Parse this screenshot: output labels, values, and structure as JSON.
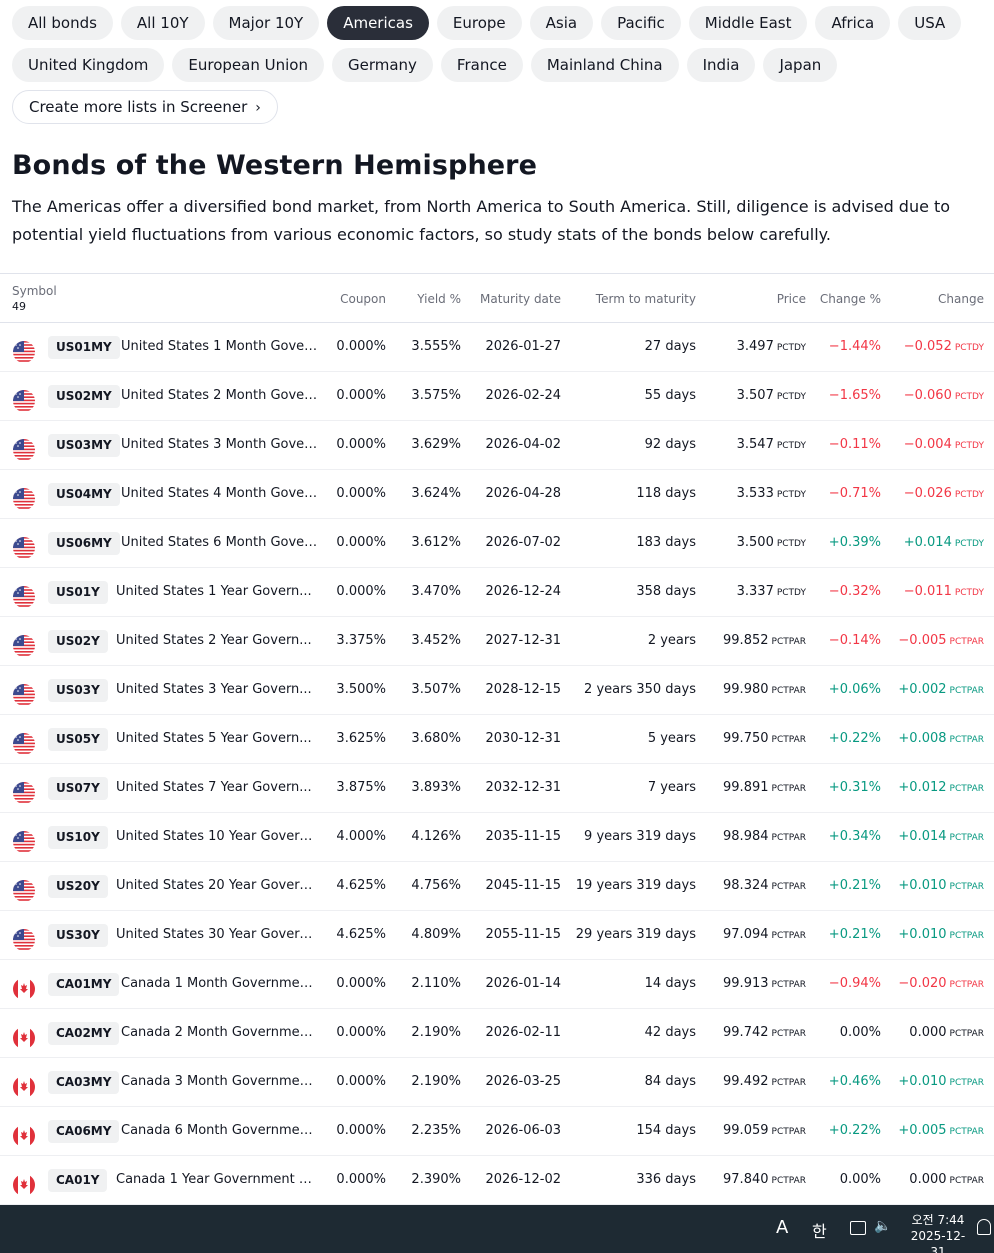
{
  "filters": {
    "row1": [
      "All bonds",
      "All 10Y",
      "Major 10Y",
      "Americas",
      "Europe",
      "Asia",
      "Pacific",
      "Middle East",
      "Africa",
      "USA"
    ],
    "row2": [
      "United Kingdom",
      "European Union",
      "Germany",
      "France",
      "Mainland China",
      "India",
      "Japan"
    ],
    "active": "Americas",
    "screener_link": "Create more lists in Screener"
  },
  "page": {
    "title": "Bonds of the Western Hemisphere",
    "description": "The Americas offer a diversified bond market, from North America to South America. Still, diligence is advised due to potential yield fluctuations from various economic factors, so study stats of the bonds below carefully."
  },
  "table": {
    "headers": {
      "symbol": "Symbol",
      "count": "49",
      "coupon": "Coupon",
      "yield": "Yield %",
      "maturity": "Maturity date",
      "term": "Term to maturity",
      "price": "Price",
      "change_pct": "Change %",
      "change": "Change"
    },
    "rows": [
      {
        "flag": "us",
        "ticker": "US01MY",
        "name": "United States 1 Month Gover...",
        "coupon": "0.000%",
        "yield": "3.555%",
        "maturity": "2026-01-27",
        "term": "27 days",
        "price": "3.497",
        "price_unit": "PCTDY",
        "change_pct": "−1.44%",
        "change": "−0.052",
        "change_unit": "PCTDY",
        "dir": "neg"
      },
      {
        "flag": "us",
        "ticker": "US02MY",
        "name": "United States 2 Month Gover...",
        "coupon": "0.000%",
        "yield": "3.575%",
        "maturity": "2026-02-24",
        "term": "55 days",
        "price": "3.507",
        "price_unit": "PCTDY",
        "change_pct": "−1.65%",
        "change": "−0.060",
        "change_unit": "PCTDY",
        "dir": "neg"
      },
      {
        "flag": "us",
        "ticker": "US03MY",
        "name": "United States 3 Month Gover...",
        "coupon": "0.000%",
        "yield": "3.629%",
        "maturity": "2026-04-02",
        "term": "92 days",
        "price": "3.547",
        "price_unit": "PCTDY",
        "change_pct": "−0.11%",
        "change": "−0.004",
        "change_unit": "PCTDY",
        "dir": "neg"
      },
      {
        "flag": "us",
        "ticker": "US04MY",
        "name": "United States 4 Month Gover...",
        "coupon": "0.000%",
        "yield": "3.624%",
        "maturity": "2026-04-28",
        "term": "118 days",
        "price": "3.533",
        "price_unit": "PCTDY",
        "change_pct": "−0.71%",
        "change": "−0.026",
        "change_unit": "PCTDY",
        "dir": "neg"
      },
      {
        "flag": "us",
        "ticker": "US06MY",
        "name": "United States 6 Month Gover...",
        "coupon": "0.000%",
        "yield": "3.612%",
        "maturity": "2026-07-02",
        "term": "183 days",
        "price": "3.500",
        "price_unit": "PCTDY",
        "change_pct": "+0.39%",
        "change": "+0.014",
        "change_unit": "PCTDY",
        "dir": "pos"
      },
      {
        "flag": "us",
        "ticker": "US01Y",
        "name": "United States 1 Year Govern...",
        "coupon": "0.000%",
        "yield": "3.470%",
        "maturity": "2026-12-24",
        "term": "358 days",
        "price": "3.337",
        "price_unit": "PCTDY",
        "change_pct": "−0.32%",
        "change": "−0.011",
        "change_unit": "PCTDY",
        "dir": "neg"
      },
      {
        "flag": "us",
        "ticker": "US02Y",
        "name": "United States 2 Year Govern...",
        "coupon": "3.375%",
        "yield": "3.452%",
        "maturity": "2027-12-31",
        "term": "2 years",
        "price": "99.852",
        "price_unit": "PCTPAR",
        "change_pct": "−0.14%",
        "change": "−0.005",
        "change_unit": "PCTPAR",
        "dir": "neg"
      },
      {
        "flag": "us",
        "ticker": "US03Y",
        "name": "United States 3 Year Govern...",
        "coupon": "3.500%",
        "yield": "3.507%",
        "maturity": "2028-12-15",
        "term": "2 years 350 days",
        "price": "99.980",
        "price_unit": "PCTPAR",
        "change_pct": "+0.06%",
        "change": "+0.002",
        "change_unit": "PCTPAR",
        "dir": "pos"
      },
      {
        "flag": "us",
        "ticker": "US05Y",
        "name": "United States 5 Year Govern...",
        "coupon": "3.625%",
        "yield": "3.680%",
        "maturity": "2030-12-31",
        "term": "5 years",
        "price": "99.750",
        "price_unit": "PCTPAR",
        "change_pct": "+0.22%",
        "change": "+0.008",
        "change_unit": "PCTPAR",
        "dir": "pos"
      },
      {
        "flag": "us",
        "ticker": "US07Y",
        "name": "United States 7 Year Govern...",
        "coupon": "3.875%",
        "yield": "3.893%",
        "maturity": "2032-12-31",
        "term": "7 years",
        "price": "99.891",
        "price_unit": "PCTPAR",
        "change_pct": "+0.31%",
        "change": "+0.012",
        "change_unit": "PCTPAR",
        "dir": "pos"
      },
      {
        "flag": "us",
        "ticker": "US10Y",
        "name": "United States 10 Year Govern...",
        "coupon": "4.000%",
        "yield": "4.126%",
        "maturity": "2035-11-15",
        "term": "9 years 319 days",
        "price": "98.984",
        "price_unit": "PCTPAR",
        "change_pct": "+0.34%",
        "change": "+0.014",
        "change_unit": "PCTPAR",
        "dir": "pos"
      },
      {
        "flag": "us",
        "ticker": "US20Y",
        "name": "United States 20 Year Govern...",
        "coupon": "4.625%",
        "yield": "4.756%",
        "maturity": "2045-11-15",
        "term": "19 years 319 days",
        "price": "98.324",
        "price_unit": "PCTPAR",
        "change_pct": "+0.21%",
        "change": "+0.010",
        "change_unit": "PCTPAR",
        "dir": "pos"
      },
      {
        "flag": "us",
        "ticker": "US30Y",
        "name": "United States 30 Year Govern...",
        "coupon": "4.625%",
        "yield": "4.809%",
        "maturity": "2055-11-15",
        "term": "29 years 319 days",
        "price": "97.094",
        "price_unit": "PCTPAR",
        "change_pct": "+0.21%",
        "change": "+0.010",
        "change_unit": "PCTPAR",
        "dir": "pos"
      },
      {
        "flag": "ca",
        "ticker": "CA01MY",
        "name": "Canada 1 Month Governmen...",
        "coupon": "0.000%",
        "yield": "2.110%",
        "maturity": "2026-01-14",
        "term": "14 days",
        "price": "99.913",
        "price_unit": "PCTPAR",
        "change_pct": "−0.94%",
        "change": "−0.020",
        "change_unit": "PCTPAR",
        "dir": "neg"
      },
      {
        "flag": "ca",
        "ticker": "CA02MY",
        "name": "Canada 2 Month Governmen...",
        "coupon": "0.000%",
        "yield": "2.190%",
        "maturity": "2026-02-11",
        "term": "42 days",
        "price": "99.742",
        "price_unit": "PCTPAR",
        "change_pct": "0.00%",
        "change": "0.000",
        "change_unit": "PCTPAR",
        "dir": "neu"
      },
      {
        "flag": "ca",
        "ticker": "CA03MY",
        "name": "Canada 3 Month Governmen...",
        "coupon": "0.000%",
        "yield": "2.190%",
        "maturity": "2026-03-25",
        "term": "84 days",
        "price": "99.492",
        "price_unit": "PCTPAR",
        "change_pct": "+0.46%",
        "change": "+0.010",
        "change_unit": "PCTPAR",
        "dir": "pos"
      },
      {
        "flag": "ca",
        "ticker": "CA06MY",
        "name": "Canada 6 Month Governmen...",
        "coupon": "0.000%",
        "yield": "2.235%",
        "maturity": "2026-06-03",
        "term": "154 days",
        "price": "99.059",
        "price_unit": "PCTPAR",
        "change_pct": "+0.22%",
        "change": "+0.005",
        "change_unit": "PCTPAR",
        "dir": "pos"
      },
      {
        "flag": "ca",
        "ticker": "CA01Y",
        "name": "Canada 1 Year Government B...",
        "coupon": "0.000%",
        "yield": "2.390%",
        "maturity": "2026-12-02",
        "term": "336 days",
        "price": "97.840",
        "price_unit": "PCTPAR",
        "change_pct": "0.00%",
        "change": "0.000",
        "change_unit": "PCTPAR",
        "dir": "neu"
      }
    ]
  },
  "taskbar": {
    "ime_a": "A",
    "ime_ko": "한",
    "time_line1": "오전 7:44",
    "time_line2": "2025-12-31"
  },
  "colors": {
    "positive": "#089981",
    "negative": "#f23645",
    "active_chip": "#2a2e39"
  }
}
